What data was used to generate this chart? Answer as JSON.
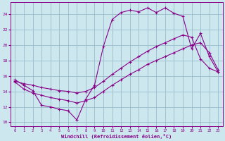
{
  "xlabel": "Windchill (Refroidissement éolien,°C)",
  "bg_color": "#cce8ee",
  "line_color": "#880088",
  "grid_color": "#99bbcc",
  "xlim": [
    -0.5,
    23.5
  ],
  "ylim": [
    9.5,
    25.5
  ],
  "xticks": [
    0,
    1,
    2,
    3,
    4,
    5,
    6,
    7,
    8,
    9,
    10,
    11,
    12,
    13,
    14,
    15,
    16,
    17,
    18,
    19,
    20,
    21,
    22,
    23
  ],
  "yticks": [
    10,
    12,
    14,
    16,
    18,
    20,
    22,
    24
  ],
  "curve1_x": [
    0,
    1,
    2,
    3,
    4,
    5,
    6,
    7,
    8,
    9,
    10,
    11,
    12,
    13,
    14,
    15,
    16,
    17,
    18,
    19,
    20,
    21,
    22,
    23
  ],
  "curve1_y": [
    15.5,
    14.8,
    14.1,
    12.2,
    12.0,
    11.7,
    11.5,
    10.3,
    13.0,
    14.8,
    19.8,
    23.3,
    24.2,
    24.5,
    24.3,
    24.8,
    24.2,
    24.8,
    24.1,
    23.7,
    19.5,
    21.5,
    18.5,
    16.5
  ],
  "curve2_x": [
    0,
    1,
    2,
    3,
    4,
    5,
    6,
    7,
    8,
    9,
    10,
    11,
    12,
    13,
    14,
    15,
    16,
    17,
    18,
    19,
    20,
    21,
    22,
    23
  ],
  "curve2_y": [
    15.3,
    15.0,
    14.8,
    14.5,
    14.3,
    14.1,
    14.0,
    13.8,
    14.0,
    14.5,
    15.3,
    16.2,
    17.0,
    17.8,
    18.5,
    19.2,
    19.8,
    20.3,
    20.8,
    21.3,
    21.0,
    18.2,
    17.0,
    16.5
  ],
  "curve3_x": [
    0,
    1,
    2,
    3,
    4,
    5,
    6,
    7,
    8,
    9,
    10,
    11,
    12,
    13,
    14,
    15,
    16,
    17,
    18,
    19,
    20,
    21,
    22,
    23
  ],
  "curve3_y": [
    15.2,
    14.3,
    13.8,
    13.5,
    13.2,
    13.0,
    12.8,
    12.5,
    12.8,
    13.2,
    14.0,
    14.8,
    15.5,
    16.2,
    16.8,
    17.5,
    18.0,
    18.5,
    19.0,
    19.5,
    20.0,
    20.3,
    19.0,
    16.8
  ]
}
